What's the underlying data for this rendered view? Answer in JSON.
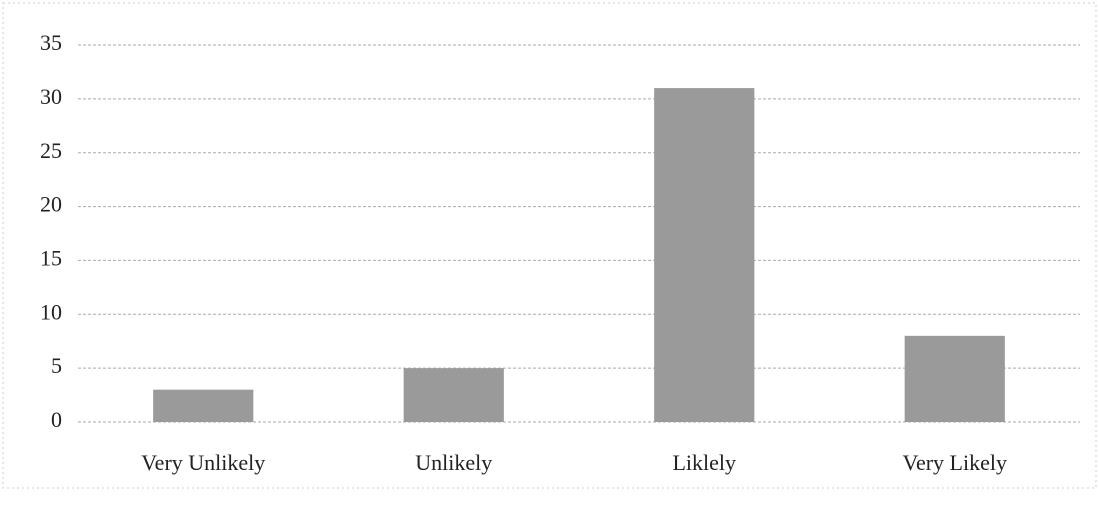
{
  "chart_data": {
    "type": "bar",
    "categories": [
      "Very Unlikely",
      "Unlikely",
      "Liklely",
      "Very Likely"
    ],
    "values": [
      3,
      5,
      31,
      8
    ],
    "color": "#9a9a9a",
    "ylim": [
      0,
      35
    ],
    "yticks": [
      0,
      5,
      10,
      15,
      20,
      25,
      30,
      35
    ],
    "grid": true
  }
}
